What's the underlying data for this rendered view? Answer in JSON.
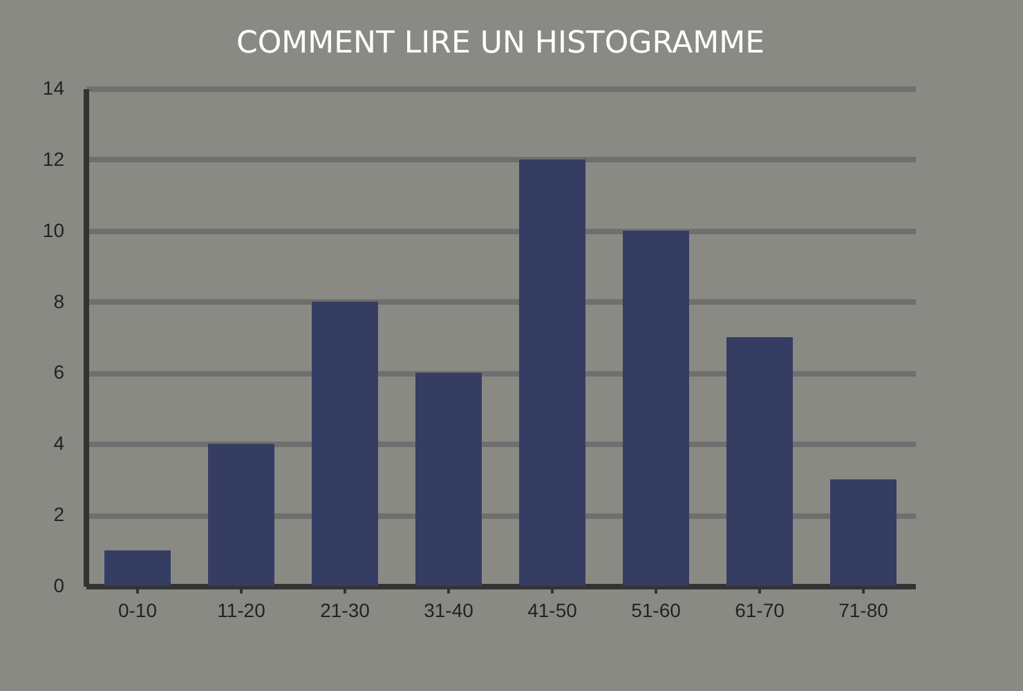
{
  "chart_data": {
    "type": "bar",
    "title": "COMMENT LIRE UN HISTOGRAMME",
    "categories": [
      "0-10",
      "11-20",
      "21-30",
      "31-40",
      "41-50",
      "51-60",
      "61-70",
      "71-80"
    ],
    "values": [
      1,
      4,
      8,
      6,
      12,
      10,
      7,
      3
    ],
    "color": "#363d63",
    "ylim": [
      0,
      14
    ],
    "yticks": [
      0,
      2,
      4,
      6,
      8,
      10,
      12,
      14
    ],
    "grid": "y"
  }
}
